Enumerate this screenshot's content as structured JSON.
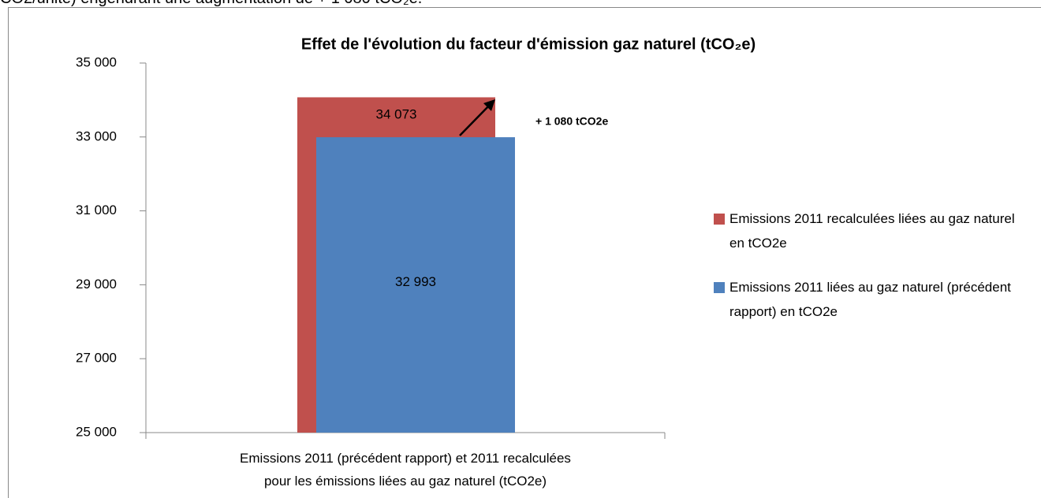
{
  "page_text": "CO2/unité) engendrant  une augmentation de + 1 080 tCO₂e.",
  "chart_data": {
    "type": "overlap_bar",
    "title": "Effet de l'évolution du facteur  d'émission gaz naturel (tCO₂e)",
    "categories": [
      "Emissions 2011 (précédent rapport) et 2011 recalculées\npour les émissions liées au gaz naturel (tCO2e)"
    ],
    "series": [
      {
        "name": "Emissions 2011 recalculées liées au gaz naturel en tCO2e",
        "color": "#c0504d",
        "values": [
          34073
        ],
        "value_labels": [
          "34 073"
        ]
      },
      {
        "name": "Emissions 2011 liées au gaz naturel (précédent rapport) en tCO2e",
        "color": "#4f81bd",
        "values": [
          32993
        ],
        "value_labels": [
          "32 993"
        ]
      }
    ],
    "annotation": "+ 1 080 tCO2e",
    "ylim": [
      25000,
      35000
    ],
    "yticks": [
      {
        "value": 25000,
        "label": "25 000"
      },
      {
        "value": 27000,
        "label": "27 000"
      },
      {
        "value": 29000,
        "label": "29 000"
      },
      {
        "value": 31000,
        "label": "31 000"
      },
      {
        "value": 33000,
        "label": "33 000"
      },
      {
        "value": 35000,
        "label": "35 000"
      }
    ],
    "grid": false,
    "legend": "right"
  }
}
